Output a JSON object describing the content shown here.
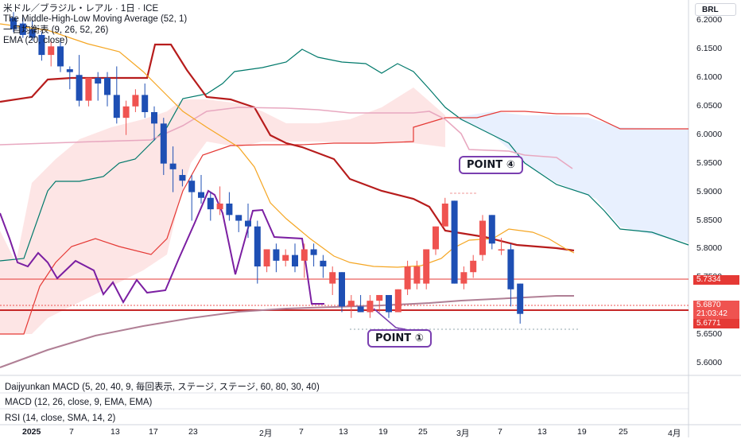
{
  "header": {
    "symbol_title": "米ドル／ブラジル・レアル · 1日 · ICE",
    "indicator_1": "The Middle-High-Low Moving Average (52, 1)",
    "indicator_2": "一目均衡表 (9, 26, 52, 26)",
    "indicator_3": "EMA (20, close)",
    "currency": "BRL"
  },
  "price_axis": {
    "ticks": [
      "6.2000",
      "6.1500",
      "6.1000",
      "6.0500",
      "6.0000",
      "5.9500",
      "5.9000",
      "5.8500",
      "5.8000",
      "5.7500",
      "5.7000",
      "5.6500",
      "5.6000"
    ],
    "tick_values": [
      6.2,
      6.15,
      6.1,
      6.05,
      6.0,
      5.95,
      5.9,
      5.85,
      5.8,
      5.75,
      5.7,
      5.65,
      5.6
    ]
  },
  "price_tags": [
    {
      "text": "5.7334",
      "color": "#e53935"
    },
    {
      "text": "5.6870",
      "color": "#ef5350"
    },
    {
      "text": "21:03:42",
      "color": "#ef5350"
    },
    {
      "text": "5.6771",
      "color": "#e53935"
    }
  ],
  "time_axis": {
    "labels": [
      "2025",
      "7",
      "13",
      "17",
      "23",
      "2月",
      "7",
      "13",
      "19",
      "25",
      "3月",
      "7",
      "13",
      "19",
      "25",
      "4月"
    ]
  },
  "annotations": [
    {
      "text": "POINT ①"
    },
    {
      "text": "POINT ④"
    }
  ],
  "panes": {
    "pane_1": "Daijyunkan MACD (5, 20, 40, 9, 毎回表示, ステージ, ステージ, 60, 80, 30, 40)",
    "pane_2": "MACD (12, 26, close, 9, EMA, EMA)",
    "pane_3": "RSI (14, close, SMA, 14, 2)"
  },
  "colors": {
    "bull": "#ef5350",
    "bear": "#1e4fb4",
    "mhl": "#c62828",
    "kijun": "#b71c1c",
    "senkou_a": "#e53935",
    "span_b": "#00796b",
    "ema": "#f5a623",
    "chikou": "#7b1fa2",
    "sma": "#b07f95",
    "cloud_red": "rgba(239,83,80,0.15)",
    "cloud_blue": "rgba(66,133,244,0.12)",
    "annotation_border": "#7a3fb0"
  },
  "chart_data": {
    "type": "candlestick",
    "ylim": [
      5.585,
      6.225
    ],
    "candles": [
      {
        "o": 6.205,
        "h": 6.215,
        "l": 6.18,
        "c": 6.185
      },
      {
        "o": 6.195,
        "h": 6.205,
        "l": 6.17,
        "c": 6.175
      },
      {
        "o": 6.185,
        "h": 6.2,
        "l": 6.165,
        "c": 6.17
      },
      {
        "o": 6.175,
        "h": 6.18,
        "l": 6.13,
        "c": 6.14
      },
      {
        "o": 6.14,
        "h": 6.165,
        "l": 6.12,
        "c": 6.155
      },
      {
        "o": 6.155,
        "h": 6.17,
        "l": 6.11,
        "c": 6.12
      },
      {
        "o": 6.115,
        "h": 6.12,
        "l": 6.08,
        "c": 6.11
      },
      {
        "o": 6.105,
        "h": 6.14,
        "l": 6.05,
        "c": 6.06
      },
      {
        "o": 6.06,
        "h": 6.1,
        "l": 6.05,
        "c": 6.1
      },
      {
        "o": 6.1,
        "h": 6.11,
        "l": 6.06,
        "c": 6.09
      },
      {
        "o": 6.1,
        "h": 6.11,
        "l": 6.05,
        "c": 6.07
      },
      {
        "o": 6.07,
        "h": 6.12,
        "l": 6.02,
        "c": 6.03
      },
      {
        "o": 6.03,
        "h": 6.06,
        "l": 6.0,
        "c": 6.05
      },
      {
        "o": 6.05,
        "h": 6.08,
        "l": 6.04,
        "c": 6.07
      },
      {
        "o": 6.07,
        "h": 6.09,
        "l": 6.03,
        "c": 6.04
      },
      {
        "o": 6.04,
        "h": 6.05,
        "l": 5.99,
        "c": 6.02
      },
      {
        "o": 6.02,
        "h": 6.03,
        "l": 5.93,
        "c": 5.95
      },
      {
        "o": 5.95,
        "h": 5.98,
        "l": 5.9,
        "c": 5.94
      },
      {
        "o": 5.93,
        "h": 5.94,
        "l": 5.91,
        "c": 5.92
      },
      {
        "o": 5.92,
        "h": 5.93,
        "l": 5.85,
        "c": 5.9
      },
      {
        "o": 5.9,
        "h": 5.93,
        "l": 5.88,
        "c": 5.89
      },
      {
        "o": 5.89,
        "h": 5.9,
        "l": 5.85,
        "c": 5.87
      },
      {
        "o": 5.87,
        "h": 5.91,
        "l": 5.86,
        "c": 5.88
      },
      {
        "o": 5.88,
        "h": 5.9,
        "l": 5.85,
        "c": 5.86
      },
      {
        "o": 5.86,
        "h": 5.86,
        "l": 5.83,
        "c": 5.85
      },
      {
        "o": 5.85,
        "h": 5.88,
        "l": 5.82,
        "c": 5.84
      },
      {
        "o": 5.84,
        "h": 5.85,
        "l": 5.74,
        "c": 5.77
      },
      {
        "o": 5.77,
        "h": 5.8,
        "l": 5.76,
        "c": 5.8
      },
      {
        "o": 5.8,
        "h": 5.81,
        "l": 5.76,
        "c": 5.78
      },
      {
        "o": 5.78,
        "h": 5.8,
        "l": 5.77,
        "c": 5.79
      },
      {
        "o": 5.79,
        "h": 5.81,
        "l": 5.76,
        "c": 5.77
      },
      {
        "o": 5.78,
        "h": 5.81,
        "l": 5.75,
        "c": 5.8
      },
      {
        "o": 5.8,
        "h": 5.81,
        "l": 5.77,
        "c": 5.79
      },
      {
        "o": 5.78,
        "h": 5.79,
        "l": 5.75,
        "c": 5.77
      },
      {
        "o": 5.74,
        "h": 5.77,
        "l": 5.72,
        "c": 5.76
      },
      {
        "o": 5.76,
        "h": 5.76,
        "l": 5.69,
        "c": 5.7
      },
      {
        "o": 5.7,
        "h": 5.72,
        "l": 5.68,
        "c": 5.71
      },
      {
        "o": 5.7,
        "h": 5.72,
        "l": 5.69,
        "c": 5.69
      },
      {
        "o": 5.69,
        "h": 5.72,
        "l": 5.68,
        "c": 5.71
      },
      {
        "o": 5.71,
        "h": 5.72,
        "l": 5.69,
        "c": 5.72
      },
      {
        "o": 5.72,
        "h": 5.72,
        "l": 5.68,
        "c": 5.69
      },
      {
        "o": 5.69,
        "h": 5.73,
        "l": 5.69,
        "c": 5.73
      },
      {
        "o": 5.73,
        "h": 5.78,
        "l": 5.72,
        "c": 5.77
      },
      {
        "o": 5.74,
        "h": 5.78,
        "l": 5.73,
        "c": 5.77
      },
      {
        "o": 5.74,
        "h": 5.8,
        "l": 5.73,
        "c": 5.8
      },
      {
        "o": 5.8,
        "h": 5.84,
        "l": 5.79,
        "c": 5.84
      },
      {
        "o": 5.84,
        "h": 5.89,
        "l": 5.84,
        "c": 5.88
      },
      {
        "o": 5.885,
        "h": 5.885,
        "l": 5.74,
        "c": 5.74
      },
      {
        "o": 5.74,
        "h": 5.77,
        "l": 5.73,
        "c": 5.76
      },
      {
        "o": 5.76,
        "h": 5.79,
        "l": 5.75,
        "c": 5.78
      },
      {
        "o": 5.79,
        "h": 5.86,
        "l": 5.78,
        "c": 5.85
      },
      {
        "o": 5.86,
        "h": 5.86,
        "l": 5.8,
        "c": 5.81
      },
      {
        "o": 5.8,
        "h": 5.82,
        "l": 5.79,
        "c": 5.8
      },
      {
        "o": 5.8,
        "h": 5.81,
        "l": 5.7,
        "c": 5.73
      },
      {
        "o": 5.74,
        "h": 5.74,
        "l": 5.67,
        "c": 5.687
      }
    ]
  }
}
